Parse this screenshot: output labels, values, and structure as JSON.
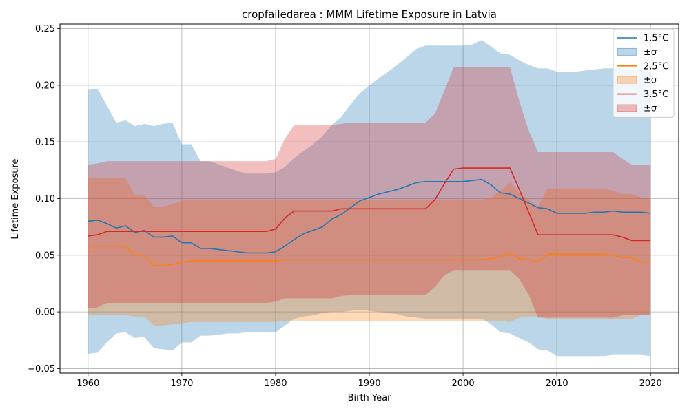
{
  "chart_data": {
    "type": "line",
    "title": "cropfailedarea : MMM Lifetime Exposure in Latvia",
    "xlabel": "Birth Year",
    "ylabel": "Lifetime Exposure",
    "xlim": [
      1957,
      2023
    ],
    "ylim": [
      -0.054,
      0.254
    ],
    "xticks": [
      1960,
      1970,
      1980,
      1990,
      2000,
      2010,
      2020
    ],
    "yticks": [
      -0.05,
      0.0,
      0.05,
      0.1,
      0.15,
      0.2,
      0.25
    ],
    "ytick_labels": [
      "−0.05",
      "0.00",
      "0.05",
      "0.10",
      "0.15",
      "0.20",
      "0.25"
    ],
    "grid": true,
    "legend_position": "top-right",
    "series": [
      {
        "name": "1.5°C",
        "band_label": "±σ",
        "color": "#1f77b4",
        "x": [
          1960,
          1961,
          1962,
          1963,
          1964,
          1965,
          1966,
          1967,
          1968,
          1969,
          1970,
          1971,
          1972,
          1973,
          1974,
          1975,
          1976,
          1977,
          1978,
          1979,
          1980,
          1981,
          1982,
          1983,
          1984,
          1985,
          1986,
          1987,
          1988,
          1989,
          1990,
          1991,
          1992,
          1993,
          1994,
          1995,
          1996,
          1997,
          1998,
          1999,
          2000,
          2001,
          2002,
          2003,
          2004,
          2005,
          2006,
          2007,
          2008,
          2009,
          2010,
          2011,
          2012,
          2013,
          2014,
          2015,
          2016,
          2017,
          2018,
          2019,
          2020
        ],
        "mean": [
          0.08,
          0.081,
          0.078,
          0.074,
          0.076,
          0.07,
          0.072,
          0.066,
          0.066,
          0.067,
          0.061,
          0.061,
          0.056,
          0.056,
          0.055,
          0.054,
          0.053,
          0.052,
          0.052,
          0.052,
          0.053,
          0.058,
          0.064,
          0.069,
          0.072,
          0.075,
          0.082,
          0.086,
          0.092,
          0.098,
          0.101,
          0.104,
          0.106,
          0.108,
          0.111,
          0.114,
          0.115,
          0.115,
          0.115,
          0.115,
          0.115,
          0.116,
          0.117,
          0.112,
          0.105,
          0.104,
          0.1,
          0.096,
          0.092,
          0.091,
          0.087,
          0.087,
          0.087,
          0.087,
          0.088,
          0.088,
          0.089,
          0.088,
          0.088,
          0.088,
          0.087
        ],
        "upper": [
          0.196,
          0.197,
          0.182,
          0.167,
          0.169,
          0.164,
          0.166,
          0.164,
          0.166,
          0.167,
          0.148,
          0.148,
          0.133,
          0.133,
          0.13,
          0.127,
          0.124,
          0.122,
          0.122,
          0.122,
          0.123,
          0.128,
          0.136,
          0.142,
          0.148,
          0.155,
          0.165,
          0.172,
          0.183,
          0.193,
          0.2,
          0.206,
          0.212,
          0.218,
          0.225,
          0.232,
          0.235,
          0.235,
          0.235,
          0.235,
          0.235,
          0.236,
          0.24,
          0.234,
          0.228,
          0.227,
          0.222,
          0.218,
          0.215,
          0.215,
          0.212,
          0.212,
          0.212,
          0.213,
          0.214,
          0.215,
          0.215,
          0.215,
          0.214,
          0.214,
          0.212
        ],
        "lower": [
          -0.037,
          -0.036,
          -0.027,
          -0.019,
          -0.018,
          -0.023,
          -0.022,
          -0.032,
          -0.033,
          -0.034,
          -0.027,
          -0.027,
          -0.021,
          -0.021,
          -0.02,
          -0.019,
          -0.019,
          -0.018,
          -0.018,
          -0.018,
          -0.018,
          -0.012,
          -0.006,
          -0.004,
          -0.003,
          -0.001,
          0.0,
          0.0,
          0.001,
          0.002,
          0.001,
          0.0,
          -0.001,
          -0.002,
          -0.004,
          -0.005,
          -0.006,
          -0.006,
          -0.006,
          -0.006,
          -0.006,
          -0.006,
          -0.006,
          -0.011,
          -0.018,
          -0.019,
          -0.023,
          -0.027,
          -0.033,
          -0.034,
          -0.039,
          -0.039,
          -0.039,
          -0.039,
          -0.039,
          -0.039,
          -0.038,
          -0.038,
          -0.038,
          -0.038,
          -0.039
        ]
      },
      {
        "name": "2.5°C",
        "band_label": "±σ",
        "color": "#ff7f0e",
        "x": [
          1960,
          1961,
          1962,
          1963,
          1964,
          1965,
          1966,
          1967,
          1968,
          1969,
          1970,
          1971,
          1972,
          1973,
          1974,
          1975,
          1976,
          1977,
          1978,
          1979,
          1980,
          1981,
          1982,
          1983,
          1984,
          1985,
          1986,
          1987,
          1988,
          1989,
          1990,
          1991,
          1992,
          1993,
          1994,
          1995,
          1996,
          1997,
          1998,
          1999,
          2000,
          2001,
          2002,
          2003,
          2004,
          2005,
          2006,
          2007,
          2008,
          2009,
          2010,
          2011,
          2012,
          2013,
          2014,
          2015,
          2016,
          2017,
          2018,
          2019,
          2020
        ],
        "mean": [
          0.058,
          0.058,
          0.058,
          0.058,
          0.058,
          0.05,
          0.05,
          0.041,
          0.041,
          0.042,
          0.044,
          0.045,
          0.045,
          0.045,
          0.045,
          0.045,
          0.045,
          0.045,
          0.045,
          0.045,
          0.045,
          0.046,
          0.046,
          0.046,
          0.046,
          0.046,
          0.046,
          0.046,
          0.046,
          0.046,
          0.046,
          0.046,
          0.046,
          0.046,
          0.046,
          0.046,
          0.046,
          0.046,
          0.046,
          0.046,
          0.046,
          0.046,
          0.046,
          0.047,
          0.049,
          0.052,
          0.047,
          0.046,
          0.044,
          0.051,
          0.051,
          0.051,
          0.051,
          0.051,
          0.051,
          0.051,
          0.05,
          0.048,
          0.048,
          0.044,
          0.044
        ],
        "upper": [
          0.118,
          0.118,
          0.118,
          0.118,
          0.118,
          0.103,
          0.103,
          0.093,
          0.093,
          0.095,
          0.098,
          0.099,
          0.099,
          0.099,
          0.099,
          0.099,
          0.099,
          0.099,
          0.099,
          0.099,
          0.099,
          0.099,
          0.099,
          0.099,
          0.099,
          0.099,
          0.099,
          0.099,
          0.099,
          0.099,
          0.099,
          0.099,
          0.099,
          0.099,
          0.099,
          0.099,
          0.099,
          0.099,
          0.099,
          0.099,
          0.099,
          0.099,
          0.099,
          0.101,
          0.107,
          0.114,
          0.105,
          0.099,
          0.093,
          0.109,
          0.109,
          0.109,
          0.109,
          0.109,
          0.109,
          0.109,
          0.107,
          0.104,
          0.104,
          0.101,
          0.101
        ],
        "lower": [
          -0.003,
          -0.003,
          -0.003,
          -0.003,
          -0.003,
          -0.004,
          -0.004,
          -0.012,
          -0.012,
          -0.011,
          -0.01,
          -0.009,
          -0.009,
          -0.009,
          -0.009,
          -0.009,
          -0.009,
          -0.009,
          -0.009,
          -0.009,
          -0.009,
          -0.008,
          -0.008,
          -0.008,
          -0.008,
          -0.008,
          -0.008,
          -0.008,
          -0.008,
          -0.008,
          -0.008,
          -0.008,
          -0.008,
          -0.008,
          -0.008,
          -0.008,
          -0.008,
          -0.008,
          -0.008,
          -0.008,
          -0.008,
          -0.008,
          -0.008,
          -0.008,
          -0.008,
          -0.009,
          -0.005,
          -0.004,
          -0.004,
          -0.006,
          -0.006,
          -0.006,
          -0.006,
          -0.006,
          -0.006,
          -0.006,
          -0.006,
          -0.006,
          -0.006,
          -0.003,
          -0.003
        ]
      },
      {
        "name": "3.5°C",
        "band_label": "±σ",
        "color": "#d62728",
        "x": [
          1960,
          1961,
          1962,
          1963,
          1964,
          1965,
          1966,
          1967,
          1968,
          1969,
          1970,
          1971,
          1972,
          1973,
          1974,
          1975,
          1976,
          1977,
          1978,
          1979,
          1980,
          1981,
          1982,
          1983,
          1984,
          1985,
          1986,
          1987,
          1988,
          1989,
          1990,
          1991,
          1992,
          1993,
          1994,
          1995,
          1996,
          1997,
          1998,
          1999,
          2000,
          2001,
          2002,
          2003,
          2004,
          2005,
          2006,
          2007,
          2008,
          2009,
          2010,
          2011,
          2012,
          2013,
          2014,
          2015,
          2016,
          2017,
          2018,
          2019,
          2020
        ],
        "mean": [
          0.067,
          0.068,
          0.071,
          0.071,
          0.071,
          0.071,
          0.071,
          0.071,
          0.071,
          0.071,
          0.071,
          0.071,
          0.071,
          0.071,
          0.071,
          0.071,
          0.071,
          0.071,
          0.071,
          0.071,
          0.073,
          0.083,
          0.089,
          0.089,
          0.089,
          0.089,
          0.089,
          0.091,
          0.091,
          0.091,
          0.091,
          0.091,
          0.091,
          0.091,
          0.091,
          0.091,
          0.091,
          0.099,
          0.113,
          0.126,
          0.127,
          0.127,
          0.127,
          0.127,
          0.127,
          0.127,
          0.108,
          0.088,
          0.068,
          0.068,
          0.068,
          0.068,
          0.068,
          0.068,
          0.068,
          0.068,
          0.068,
          0.066,
          0.063,
          0.063,
          0.063
        ],
        "upper": [
          0.13,
          0.131,
          0.133,
          0.133,
          0.133,
          0.133,
          0.133,
          0.133,
          0.133,
          0.133,
          0.133,
          0.133,
          0.133,
          0.133,
          0.133,
          0.133,
          0.133,
          0.133,
          0.133,
          0.133,
          0.135,
          0.153,
          0.165,
          0.165,
          0.165,
          0.165,
          0.165,
          0.166,
          0.167,
          0.167,
          0.167,
          0.167,
          0.167,
          0.167,
          0.167,
          0.167,
          0.167,
          0.175,
          0.195,
          0.216,
          0.216,
          0.216,
          0.216,
          0.216,
          0.216,
          0.216,
          0.186,
          0.16,
          0.141,
          0.141,
          0.141,
          0.141,
          0.141,
          0.141,
          0.141,
          0.141,
          0.141,
          0.135,
          0.13,
          0.13,
          0.13
        ],
        "lower": [
          0.003,
          0.004,
          0.008,
          0.008,
          0.008,
          0.008,
          0.008,
          0.008,
          0.008,
          0.008,
          0.008,
          0.008,
          0.008,
          0.008,
          0.008,
          0.008,
          0.008,
          0.008,
          0.008,
          0.008,
          0.009,
          0.012,
          0.012,
          0.012,
          0.012,
          0.012,
          0.012,
          0.014,
          0.015,
          0.015,
          0.015,
          0.015,
          0.015,
          0.015,
          0.015,
          0.015,
          0.015,
          0.022,
          0.032,
          0.037,
          0.037,
          0.037,
          0.037,
          0.037,
          0.037,
          0.037,
          0.029,
          0.015,
          -0.005,
          -0.005,
          -0.005,
          -0.005,
          -0.005,
          -0.005,
          -0.005,
          -0.005,
          -0.005,
          -0.003,
          -0.003,
          -0.003,
          -0.003
        ]
      }
    ]
  }
}
